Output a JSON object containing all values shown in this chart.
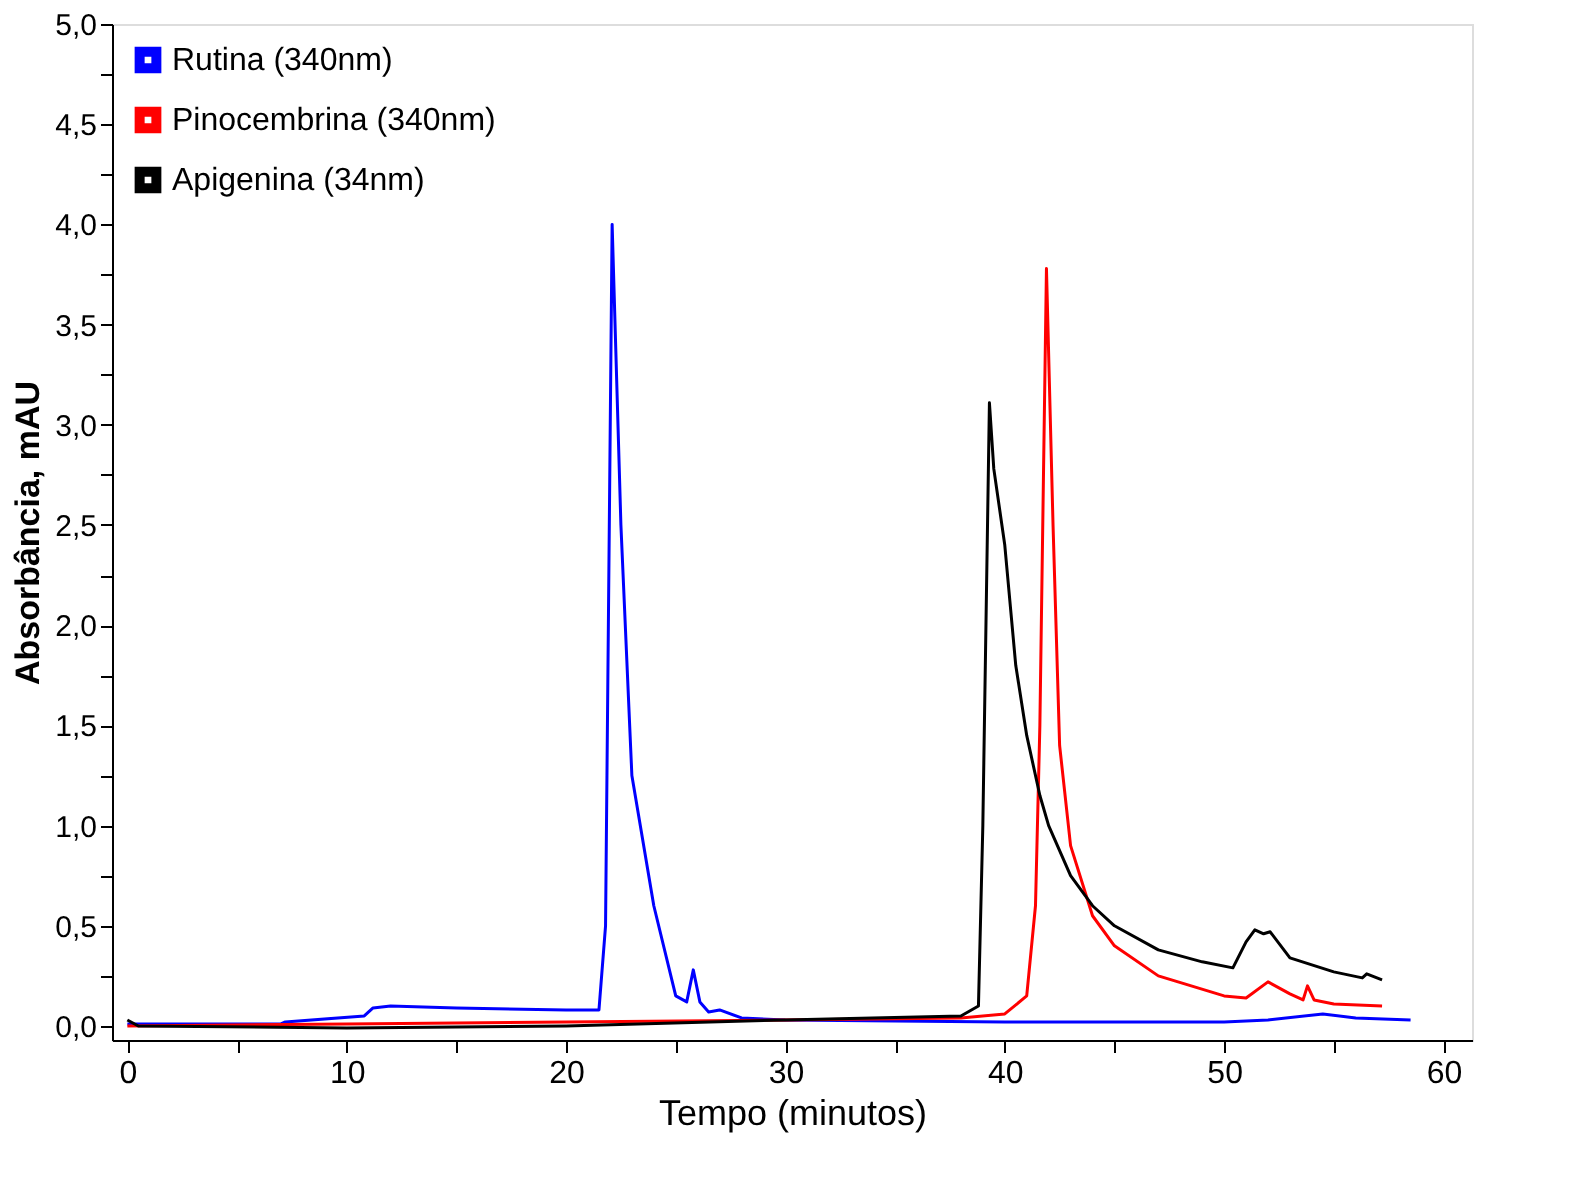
{
  "chart_data": {
    "type": "line",
    "xlabel": "Tempo (minutos)",
    "ylabel": "Absorbância, mAU",
    "xlim": [
      -0.7,
      61.3
    ],
    "ylim": [
      -0.07,
      5.0
    ],
    "xticks": [
      0,
      {
        "value": 5,
        "label": null
      },
      10,
      {
        "value": 15,
        "label": null
      },
      20,
      {
        "value": 25,
        "label": null
      },
      30,
      {
        "value": 35,
        "label": null
      },
      40,
      {
        "value": 45,
        "label": null
      },
      50,
      {
        "value": 55,
        "label": null
      },
      60
    ],
    "yticks": [
      {
        "value": 0,
        "label": "0,0"
      },
      {
        "value": 0.25,
        "label": null
      },
      {
        "value": 0.5,
        "label": "0,5"
      },
      {
        "value": 0.75,
        "label": null
      },
      {
        "value": 1.0,
        "label": "1,0"
      },
      {
        "value": 1.25,
        "label": null
      },
      {
        "value": 1.5,
        "label": "1,5"
      },
      {
        "value": 1.75,
        "label": null
      },
      {
        "value": 2.0,
        "label": "2,0"
      },
      {
        "value": 2.25,
        "label": null
      },
      {
        "value": 2.5,
        "label": "2,5"
      },
      {
        "value": 2.75,
        "label": null
      },
      {
        "value": 3.0,
        "label": "3,0"
      },
      {
        "value": 3.25,
        "label": null
      },
      {
        "value": 3.5,
        "label": "3,5"
      },
      {
        "value": 3.75,
        "label": null
      },
      {
        "value": 4.0,
        "label": "4,0"
      },
      {
        "value": 4.25,
        "label": null
      },
      {
        "value": 4.5,
        "label": "4,5"
      },
      {
        "value": 4.75,
        "label": null
      },
      {
        "value": 5.0,
        "label": "5,0"
      }
    ],
    "grid": false,
    "legend": "top left",
    "marker": "none",
    "line_style": "solid",
    "series": [
      {
        "name": "Rutina (340nm)",
        "color": "#0000ff",
        "x": [
          0,
          7,
          7.2,
          10.8,
          11.2,
          12,
          15,
          20,
          21.5,
          21.8,
          22.1,
          22.5,
          23,
          24,
          25,
          25.5,
          25.8,
          26.1,
          26.5,
          27,
          28,
          30,
          40,
          50,
          52,
          54.5,
          56,
          58.5
        ],
        "values": [
          0.01,
          0.01,
          0.02,
          0.05,
          0.09,
          0.1,
          0.09,
          0.08,
          0.08,
          0.5,
          4.0,
          2.5,
          1.25,
          0.6,
          0.15,
          0.12,
          0.28,
          0.12,
          0.07,
          0.08,
          0.04,
          0.03,
          0.02,
          0.02,
          0.03,
          0.06,
          0.04,
          0.03
        ]
      },
      {
        "name": "Pinocembrina (340nm)",
        "color": "#ff0000",
        "x": [
          0,
          10,
          20,
          30,
          38,
          40,
          41,
          41.4,
          41.6,
          41.9,
          42.2,
          42.5,
          43,
          44,
          45,
          47,
          50,
          51,
          52,
          53,
          53.6,
          53.8,
          54.1,
          55,
          57.2
        ],
        "values": [
          0.0,
          0.01,
          0.02,
          0.03,
          0.04,
          0.06,
          0.15,
          0.6,
          1.5,
          3.78,
          2.5,
          1.4,
          0.9,
          0.55,
          0.4,
          0.25,
          0.15,
          0.14,
          0.22,
          0.16,
          0.13,
          0.2,
          0.13,
          0.11,
          0.1
        ]
      },
      {
        "name": "Apigenina (34nm)",
        "color": "#000000",
        "x": [
          0,
          0.5,
          10,
          20,
          30,
          38,
          38.8,
          39.0,
          39.3,
          39.5,
          40,
          40.5,
          41,
          41.6,
          42,
          43,
          44,
          45,
          47,
          49,
          50.4,
          51,
          51.4,
          51.8,
          52.1,
          53,
          55,
          56.3,
          56.5,
          57.2
        ],
        "values": [
          0.03,
          0.0,
          -0.01,
          0.0,
          0.03,
          0.05,
          0.1,
          1.0,
          3.11,
          2.78,
          2.4,
          1.8,
          1.45,
          1.15,
          1.0,
          0.75,
          0.6,
          0.5,
          0.38,
          0.32,
          0.29,
          0.42,
          0.48,
          0.46,
          0.47,
          0.34,
          0.27,
          0.24,
          0.26,
          0.23
        ]
      }
    ]
  }
}
